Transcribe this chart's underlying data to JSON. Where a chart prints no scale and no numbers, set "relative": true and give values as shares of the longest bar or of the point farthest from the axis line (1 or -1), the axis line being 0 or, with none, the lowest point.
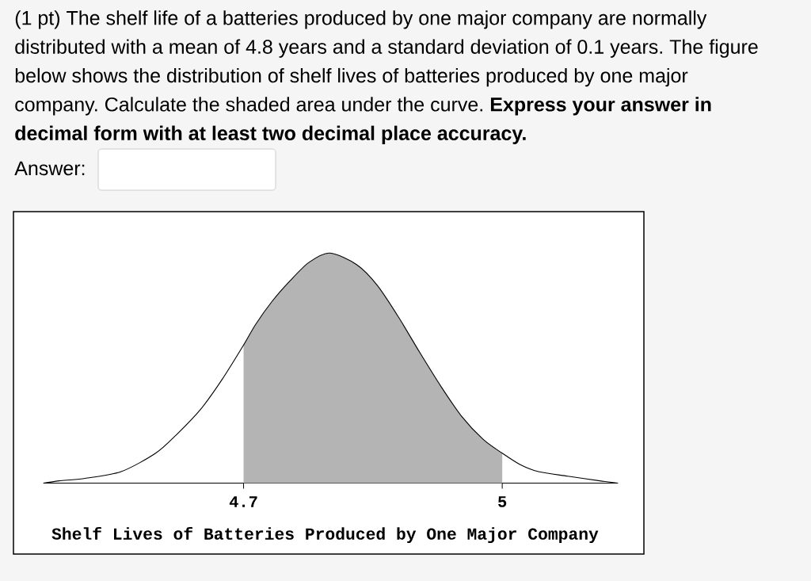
{
  "chart_data": {
    "type": "line",
    "title": "(1 pt) The shelf life of a batteries produced by one major company are normally distributed with a mean of 4.8 years and a standard deviation of 0.1 years. The figure below shows the distribution of shelf lives of batteries produced by one major company. Calculate the shaded area under the curve. **Express your answer in decimal form with at least two decimal place accuracy.**",
    "annotations": [
      "Answer:"
    ],
    "xlabel": "Shelf Lives of Batteries Produced by One Major Company",
    "relative": true,
    "xlim": [
      4.468,
      5.134
    ],
    "xticks": [
      4.7,
      5
    ],
    "series": [
      {
        "type": "area",
        "color": "#b4b4b4",
        "x": [
          4.7,
          4.714,
          4.733,
          4.754,
          4.776,
          4.8,
          4.831,
          4.855,
          4.88,
          4.904,
          4.929,
          4.953,
          4.978,
          5.0
        ],
        "values": [
          0.6,
          0.69,
          0.79,
          0.88,
          0.96,
          1,
          0.95,
          0.86,
          0.72,
          0.57,
          0.42,
          0.29,
          0.19,
          0.13
        ]
      },
      {
        "color": "#000000",
        "x": [
          4.468,
          4.486,
          4.515,
          4.558,
          4.598,
          4.622,
          4.65,
          4.675,
          4.7,
          4.714,
          4.733,
          4.754,
          4.776,
          4.8,
          4.831,
          4.855,
          4.88,
          4.904,
          4.929,
          4.953,
          4.978,
          5.0,
          5.021,
          5.042,
          5.076,
          5.113,
          5.134
        ],
        "values": [
          0,
          0.01,
          0.02,
          0.05,
          0.13,
          0.21,
          0.32,
          0.45,
          0.6,
          0.69,
          0.79,
          0.88,
          0.96,
          1,
          0.95,
          0.86,
          0.72,
          0.57,
          0.42,
          0.29,
          0.19,
          0.13,
          0.08,
          0.05,
          0.03,
          0.01,
          0
        ]
      }
    ]
  }
}
